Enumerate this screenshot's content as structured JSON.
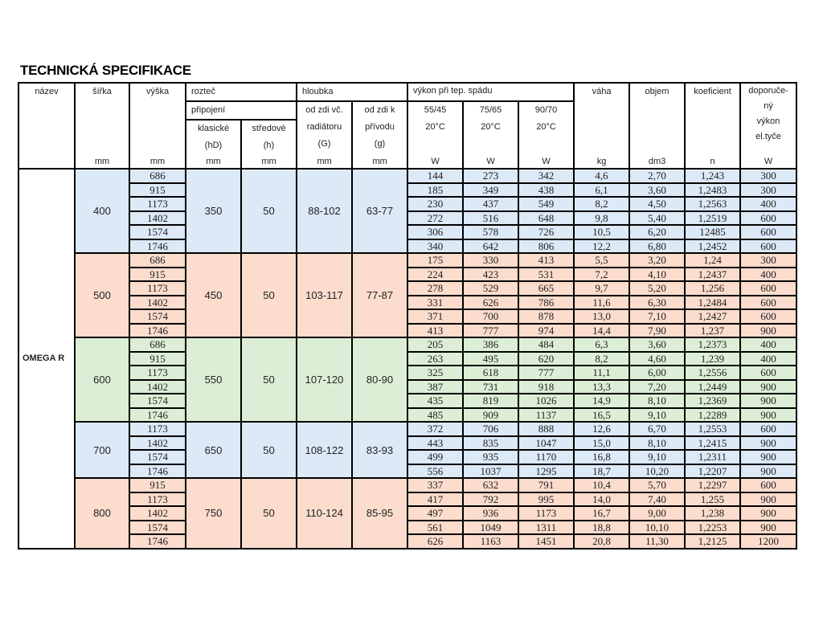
{
  "title": "TECHNICKÁ SPECIFIKACE",
  "header": {
    "nazev": "název",
    "sirka": "šířka",
    "vyska": "výška",
    "roztec": "rozteč",
    "pripojeni": "připojení",
    "klasicke": "klasické",
    "klasicke_sym": "(hD)",
    "stredove": "středové",
    "stredove_sym": "(h)",
    "hloubka": "hloubka",
    "od_zdi_rad_1": "od zdi vč.",
    "od_zdi_rad_2": "radiátoru",
    "od_zdi_rad_sym": "(G)",
    "od_zdi_pr_1": "od zdi k",
    "od_zdi_pr_2": "přívodu",
    "od_zdi_pr_sym": "(g)",
    "vykon_1": "výkon při",
    "vykon_2": "tep. spádu",
    "t1": "55/45",
    "t2": "75/65",
    "t3": "90/70",
    "temp": "20°C",
    "vaha": "váha",
    "objem": "objem",
    "koeficient": "koeficient",
    "dop_1": "doporuče-",
    "dop_2": "ný",
    "dop_3": "výkon",
    "dop_4": "el.tyče",
    "units": [
      "",
      "mm",
      "mm",
      "mm",
      "mm",
      "mm",
      "mm",
      "W",
      "W",
      "W",
      "kg",
      "dm3",
      "n",
      "W"
    ]
  },
  "product_name": "OMEGA R",
  "groups": [
    {
      "width": "400",
      "hD": "350",
      "h": "50",
      "G": "88-102",
      "g": "63-77",
      "color": "#dce9f6",
      "rows": [
        [
          "686",
          "144",
          "273",
          "342",
          "4,6",
          "2,70",
          "1,243",
          "300"
        ],
        [
          "915",
          "185",
          "349",
          "438",
          "6,1",
          "3,60",
          "1,2483",
          "300"
        ],
        [
          "1173",
          "230",
          "437",
          "549",
          "8,2",
          "4,50",
          "1,2563",
          "400"
        ],
        [
          "1402",
          "272",
          "516",
          "648",
          "9,8",
          "5,40",
          "1,2519",
          "600"
        ],
        [
          "1574",
          "306",
          "578",
          "726",
          "10,5",
          "6,20",
          "12485",
          "600"
        ],
        [
          "1746",
          "340",
          "642",
          "806",
          "12,2",
          "6,80",
          "1,2452",
          "600"
        ]
      ]
    },
    {
      "width": "500",
      "hD": "450",
      "h": "50",
      "G": "103-117",
      "g": "77-87",
      "color": "#fbdccd",
      "rows": [
        [
          "686",
          "175",
          "330",
          "413",
          "5,5",
          "3,20",
          "1,24",
          "300"
        ],
        [
          "915",
          "224",
          "423",
          "531",
          "7,2",
          "4,10",
          "1,2437",
          "400"
        ],
        [
          "1173",
          "278",
          "529",
          "665",
          "9,7",
          "5,20",
          "1,256",
          "600"
        ],
        [
          "1402",
          "331",
          "626",
          "786",
          "11,6",
          "6,30",
          "1,2484",
          "600"
        ],
        [
          "1574",
          "371",
          "700",
          "878",
          "13,0",
          "7,10",
          "1,2427",
          "600"
        ],
        [
          "1746",
          "413",
          "777",
          "974",
          "14,4",
          "7,90",
          "1,237",
          "900"
        ]
      ]
    },
    {
      "width": "600",
      "hD": "550",
      "h": "50",
      "G": "107-120",
      "g": "80-90",
      "color": "#dcefd6",
      "rows": [
        [
          "686",
          "205",
          "386",
          "484",
          "6,3",
          "3,60",
          "1,2373",
          "400"
        ],
        [
          "915",
          "263",
          "495",
          "620",
          "8,2",
          "4,60",
          "1,239",
          "400"
        ],
        [
          "1173",
          "325",
          "618",
          "777",
          "11,1",
          "6,00",
          "1,2556",
          "600"
        ],
        [
          "1402",
          "387",
          "731",
          "918",
          "13,3",
          "7,20",
          "1,2449",
          "900"
        ],
        [
          "1574",
          "435",
          "819",
          "1026",
          "14,9",
          "8,10",
          "1,2369",
          "900"
        ],
        [
          "1746",
          "485",
          "909",
          "1137",
          "16,5",
          "9,10",
          "1,2289",
          "900"
        ]
      ]
    },
    {
      "width": "700",
      "hD": "650",
      "h": "50",
      "G": "108-122",
      "g": "83-93",
      "color": "#dce9f6",
      "rows": [
        [
          "1173",
          "372",
          "706",
          "888",
          "12,6",
          "6,70",
          "1,2553",
          "600"
        ],
        [
          "1402",
          "443",
          "835",
          "1047",
          "15,0",
          "8,10",
          "1,2415",
          "900"
        ],
        [
          "1574",
          "499",
          "935",
          "1170",
          "16,8",
          "9,10",
          "1,2311",
          "900"
        ],
        [
          "1746",
          "556",
          "1037",
          "1295",
          "18,7",
          "10,20",
          "1,2207",
          "900"
        ]
      ]
    },
    {
      "width": "800",
      "hD": "750",
      "h": "50",
      "G": "110-124",
      "g": "85-95",
      "color": "#fbdccd",
      "rows": [
        [
          "915",
          "337",
          "632",
          "791",
          "10,4",
          "5,70",
          "1,2297",
          "600"
        ],
        [
          "1173",
          "417",
          "792",
          "995",
          "14,0",
          "7,40",
          "1,255",
          "900"
        ],
        [
          "1402",
          "497",
          "936",
          "1173",
          "16,7",
          "9,00",
          "1,238",
          "900"
        ],
        [
          "1574",
          "561",
          "1049",
          "1311",
          "18,8",
          "10,10",
          "1,2253",
          "900"
        ],
        [
          "1746",
          "626",
          "1163",
          "1451",
          "20,8",
          "11,30",
          "1,2125",
          "1200"
        ]
      ]
    }
  ]
}
